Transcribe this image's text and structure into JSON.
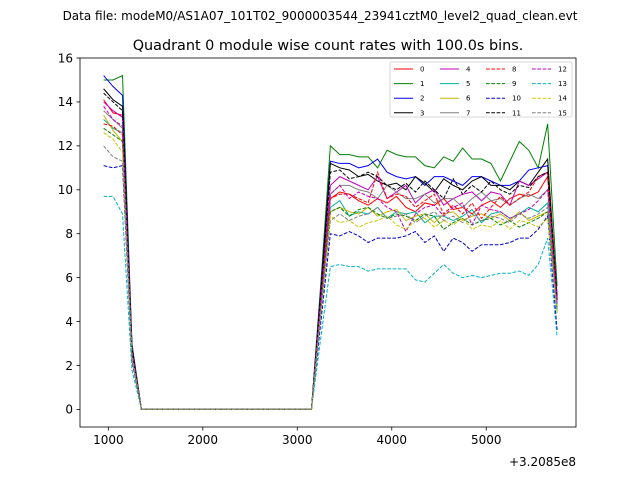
{
  "supertitle": "Data file: modeM0/AS1A07_101T02_9000003544_23941cztM0_level2_quad_clean.evt",
  "chart_data": {
    "type": "line",
    "title": "Quadrant 0 module wise count rates with 100.0s bins.",
    "xlabel": "",
    "ylabel": "",
    "x_offset_label": "+3.2085e8",
    "xlim": [
      700,
      5950
    ],
    "ylim": [
      -0.8,
      16.0
    ],
    "x_ticks": [
      1000,
      2000,
      3000,
      4000,
      5000
    ],
    "y_ticks": [
      0,
      2,
      4,
      6,
      8,
      10,
      12,
      14,
      16
    ],
    "legend_position": "upper right",
    "grid": false,
    "x": [
      950,
      1050,
      1150,
      1250,
      1350,
      1450,
      1550,
      1650,
      1750,
      1850,
      1950,
      2050,
      2150,
      2250,
      2350,
      2450,
      2550,
      2650,
      2750,
      2850,
      2950,
      3050,
      3150,
      3250,
      3350,
      3450,
      3550,
      3650,
      3750,
      3850,
      3950,
      4050,
      4150,
      4250,
      4350,
      4450,
      4550,
      4650,
      4750,
      4850,
      4950,
      5050,
      5150,
      5250,
      5350,
      5450,
      5550,
      5650,
      5750
    ],
    "series": [
      {
        "name": "0",
        "color": "#ff0000",
        "dash": "solid",
        "values": [
          14.1,
          13.5,
          13.4,
          2.6,
          0,
          0,
          0,
          0,
          0,
          0,
          0,
          0,
          0,
          0,
          0,
          0,
          0,
          0,
          0,
          0,
          0,
          0,
          0,
          4.8,
          9.6,
          9.9,
          9.8,
          9.5,
          9.3,
          9.6,
          9.4,
          9.7,
          9.2,
          9.0,
          9.4,
          9.3,
          9.6,
          9.1,
          9.2,
          8.9,
          9.3,
          9.5,
          9.2,
          9.6,
          9.8,
          9.7,
          9.9,
          10.6,
          4.8
        ]
      },
      {
        "name": "1",
        "color": "#008000",
        "dash": "solid",
        "values": [
          15.0,
          15.0,
          15.2,
          3.0,
          0,
          0,
          0,
          0,
          0,
          0,
          0,
          0,
          0,
          0,
          0,
          0,
          0,
          0,
          0,
          0,
          0,
          0,
          0,
          5.8,
          12.0,
          11.6,
          11.6,
          11.5,
          11.5,
          11.0,
          11.8,
          11.6,
          11.5,
          11.5,
          11.1,
          11.0,
          11.5,
          11.3,
          11.9,
          11.4,
          11.4,
          11.2,
          10.4,
          11.3,
          12.2,
          11.8,
          11.0,
          13.0,
          5.6
        ]
      },
      {
        "name": "2",
        "color": "#0000ff",
        "dash": "solid",
        "values": [
          15.2,
          14.7,
          14.3,
          2.9,
          0,
          0,
          0,
          0,
          0,
          0,
          0,
          0,
          0,
          0,
          0,
          0,
          0,
          0,
          0,
          0,
          0,
          0,
          0,
          5.5,
          11.3,
          11.2,
          11.2,
          11.0,
          11.1,
          11.4,
          10.8,
          10.6,
          10.5,
          10.6,
          10.2,
          10.6,
          10.6,
          10.4,
          10.2,
          10.6,
          10.6,
          10.4,
          10.2,
          10.2,
          10.4,
          10.9,
          11.0,
          11.1,
          5.2
        ]
      },
      {
        "name": "3",
        "color": "#000000",
        "dash": "solid",
        "values": [
          14.6,
          14.1,
          13.8,
          2.8,
          0,
          0,
          0,
          0,
          0,
          0,
          0,
          0,
          0,
          0,
          0,
          0,
          0,
          0,
          0,
          0,
          0,
          0,
          0,
          5.4,
          11.2,
          11.0,
          10.9,
          10.6,
          10.7,
          10.4,
          10.2,
          10.3,
          10.0,
          10.6,
          10.3,
          9.9,
          10.5,
          10.2,
          10.0,
          10.4,
          10.6,
          10.2,
          10.2,
          10.0,
          10.4,
          10.2,
          10.8,
          11.4,
          5.0
        ]
      },
      {
        "name": "4",
        "color": "#c000c0",
        "dash": "solid",
        "values": [
          14.0,
          13.6,
          13.3,
          2.7,
          0,
          0,
          0,
          0,
          0,
          0,
          0,
          0,
          0,
          0,
          0,
          0,
          0,
          0,
          0,
          0,
          0,
          0,
          0,
          5.2,
          10.2,
          10.6,
          10.4,
          10.2,
          10.0,
          10.6,
          9.6,
          9.9,
          10.2,
          9.4,
          9.8,
          10.0,
          9.3,
          9.6,
          9.8,
          9.9,
          9.5,
          9.9,
          9.8,
          9.3,
          10.4,
          10.2,
          10.5,
          10.8,
          5.1
        ]
      },
      {
        "name": "5",
        "color": "#00b0a0",
        "dash": "solid",
        "values": [
          13.2,
          12.8,
          12.6,
          2.5,
          0,
          0,
          0,
          0,
          0,
          0,
          0,
          0,
          0,
          0,
          0,
          0,
          0,
          0,
          0,
          0,
          0,
          0,
          0,
          4.7,
          9.2,
          9.5,
          8.8,
          9.0,
          8.9,
          9.2,
          8.7,
          9.0,
          8.9,
          9.0,
          8.5,
          8.8,
          8.8,
          8.6,
          8.8,
          9.1,
          8.5,
          8.9,
          9.0,
          8.7,
          8.9,
          9.2,
          9.0,
          9.4,
          4.4
        ]
      },
      {
        "name": "6",
        "color": "#c8b400",
        "dash": "solid",
        "values": [
          13.4,
          12.7,
          12.2,
          2.5,
          0,
          0,
          0,
          0,
          0,
          0,
          0,
          0,
          0,
          0,
          0,
          0,
          0,
          0,
          0,
          0,
          0,
          0,
          0,
          4.6,
          9.0,
          9.2,
          9.0,
          8.9,
          9.2,
          8.8,
          9.0,
          9.1,
          8.6,
          8.8,
          8.9,
          8.5,
          8.9,
          9.0,
          8.6,
          8.8,
          8.9,
          8.7,
          8.9,
          8.6,
          9.0,
          8.6,
          8.8,
          9.0,
          4.6
        ]
      },
      {
        "name": "7",
        "color": "#808080",
        "dash": "solid",
        "values": [
          13.6,
          13.2,
          12.8,
          2.6,
          0,
          0,
          0,
          0,
          0,
          0,
          0,
          0,
          0,
          0,
          0,
          0,
          0,
          0,
          0,
          0,
          0,
          0,
          0,
          4.8,
          9.8,
          10.2,
          10.2,
          10.0,
          9.9,
          9.6,
          10.2,
          9.9,
          9.6,
          9.6,
          9.8,
          9.4,
          9.6,
          9.6,
          9.2,
          9.6,
          9.9,
          9.5,
          9.6,
          9.3,
          9.6,
          9.8,
          9.6,
          10.0,
          4.8
        ]
      },
      {
        "name": "8",
        "color": "#ff0000",
        "dash": "dashed",
        "values": [
          13.0,
          12.9,
          12.5,
          2.5,
          0,
          0,
          0,
          0,
          0,
          0,
          0,
          0,
          0,
          0,
          0,
          0,
          0,
          0,
          0,
          0,
          0,
          0,
          0,
          4.9,
          9.6,
          9.8,
          9.8,
          9.6,
          9.4,
          10.8,
          9.6,
          9.8,
          9.7,
          9.2,
          9.5,
          9.8,
          8.9,
          9.3,
          8.9,
          9.4,
          8.7,
          9.2,
          9.7,
          9.3,
          9.6,
          9.9,
          10.6,
          10.8,
          5.0
        ]
      },
      {
        "name": "9",
        "color": "#008000",
        "dash": "dashed",
        "values": [
          12.8,
          12.5,
          12.2,
          2.5,
          0,
          0,
          0,
          0,
          0,
          0,
          0,
          0,
          0,
          0,
          0,
          0,
          0,
          0,
          0,
          0,
          0,
          0,
          0,
          4.7,
          9.0,
          9.2,
          8.8,
          9.1,
          9.2,
          8.9,
          8.7,
          8.9,
          8.8,
          8.6,
          8.9,
          8.8,
          8.2,
          8.5,
          8.7,
          8.4,
          8.6,
          8.7,
          8.4,
          8.6,
          8.3,
          8.5,
          8.7,
          9.0,
          4.6
        ]
      },
      {
        "name": "10",
        "color": "#0000c8",
        "dash": "dashed",
        "values": [
          11.1,
          11.0,
          11.1,
          2.2,
          0,
          0,
          0,
          0,
          0,
          0,
          0,
          0,
          0,
          0,
          0,
          0,
          0,
          0,
          0,
          0,
          0,
          0,
          0,
          4.0,
          8.0,
          7.9,
          8.1,
          7.9,
          7.6,
          7.8,
          7.8,
          7.8,
          7.9,
          8.1,
          7.6,
          7.9,
          7.2,
          7.8,
          7.6,
          7.2,
          7.5,
          7.5,
          7.5,
          7.6,
          7.8,
          7.8,
          8.2,
          8.8,
          3.6
        ]
      },
      {
        "name": "11",
        "color": "#000000",
        "dash": "dashed",
        "values": [
          14.4,
          14.0,
          13.6,
          2.7,
          0,
          0,
          0,
          0,
          0,
          0,
          0,
          0,
          0,
          0,
          0,
          0,
          0,
          0,
          0,
          0,
          0,
          0,
          0,
          5.3,
          10.8,
          10.9,
          10.5,
          10.6,
          10.8,
          10.6,
          10.2,
          10.0,
          10.3,
          9.9,
          10.4,
          10.0,
          9.6,
          10.5,
          9.8,
          10.2,
          9.9,
          10.4,
          10.0,
          9.8,
          10.2,
          10.1,
          10.6,
          10.8,
          5.0
        ]
      },
      {
        "name": "12",
        "color": "#c000c0",
        "dash": "dashed",
        "values": [
          13.8,
          13.2,
          12.9,
          2.6,
          0,
          0,
          0,
          0,
          0,
          0,
          0,
          0,
          0,
          0,
          0,
          0,
          0,
          0,
          0,
          0,
          0,
          0,
          0,
          5.0,
          9.8,
          10.2,
          9.6,
          9.9,
          9.7,
          9.6,
          9.2,
          9.0,
          8.1,
          8.9,
          9.2,
          9.3,
          8.8,
          9.2,
          9.4,
          8.4,
          9.3,
          9.1,
          9.0,
          8.7,
          8.9,
          9.1,
          9.5,
          10.0,
          4.8
        ]
      },
      {
        "name": "13",
        "color": "#00b4c8",
        "dash": "dashed",
        "values": [
          9.7,
          9.7,
          8.9,
          1.8,
          0,
          0,
          0,
          0,
          0,
          0,
          0,
          0,
          0,
          0,
          0,
          0,
          0,
          0,
          0,
          0,
          0,
          0,
          0,
          3.3,
          6.5,
          6.6,
          6.5,
          6.5,
          6.3,
          6.4,
          6.4,
          6.4,
          6.4,
          5.9,
          5.8,
          6.2,
          6.6,
          6.2,
          6.0,
          6.1,
          6.0,
          6.1,
          6.2,
          6.2,
          6.3,
          6.1,
          6.6,
          7.8,
          3.3
        ]
      },
      {
        "name": "14",
        "color": "#c8c800",
        "dash": "dashed",
        "values": [
          12.6,
          12.3,
          11.7,
          2.4,
          0,
          0,
          0,
          0,
          0,
          0,
          0,
          0,
          0,
          0,
          0,
          0,
          0,
          0,
          0,
          0,
          0,
          0,
          0,
          4.5,
          8.8,
          8.5,
          8.6,
          8.3,
          8.5,
          8.6,
          8.8,
          8.4,
          8.2,
          8.6,
          8.7,
          8.3,
          8.6,
          8.4,
          8.7,
          8.2,
          8.4,
          8.3,
          8.6,
          8.2,
          8.6,
          8.5,
          8.3,
          8.7,
          4.4
        ]
      },
      {
        "name": "15",
        "color": "#808080",
        "dash": "dashed",
        "values": [
          12.0,
          11.5,
          11.3,
          2.3,
          0,
          0,
          0,
          0,
          0,
          0,
          0,
          0,
          0,
          0,
          0,
          0,
          0,
          0,
          0,
          0,
          0,
          0,
          0,
          4.4,
          8.6,
          8.9,
          8.6,
          8.8,
          8.9,
          9.2,
          8.7,
          8.8,
          8.9,
          8.5,
          8.8,
          9.0,
          8.6,
          8.8,
          8.5,
          8.9,
          8.6,
          8.8,
          8.7,
          8.5,
          8.9,
          8.7,
          8.9,
          9.2,
          4.5
        ]
      }
    ]
  }
}
